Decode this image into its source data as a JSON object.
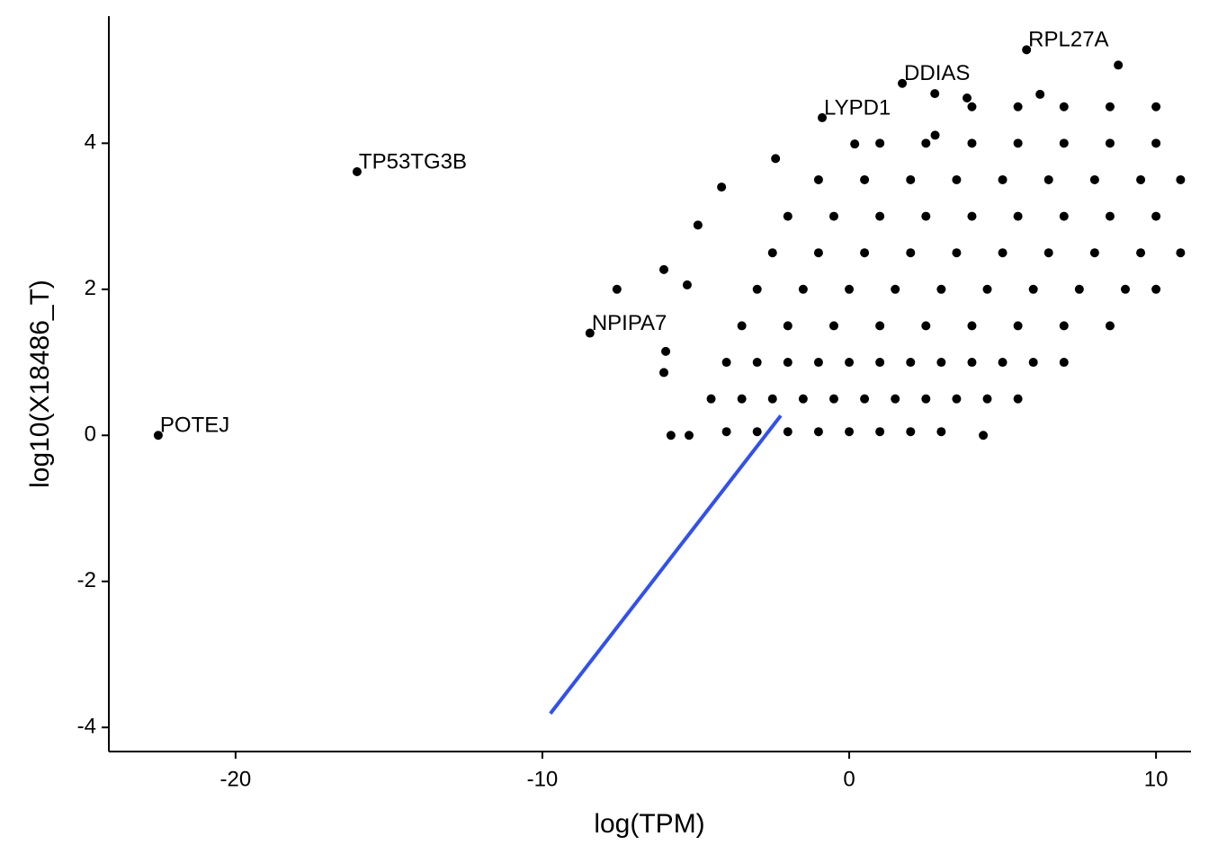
{
  "chart_data": {
    "type": "scatter",
    "x_label": "log(TPM)",
    "y_label": "log10(X18486_T)",
    "xlim": [
      -24.13,
      11.14
    ],
    "ylim": [
      -4.33,
      5.74
    ],
    "xticks": [
      -20,
      -10,
      0,
      10
    ],
    "yticks": [
      -4,
      -2,
      0,
      2,
      4
    ],
    "color": "#000000",
    "labeled_points": {
      "x": [
        -22.52,
        -16.04,
        -8.45,
        5.78,
        1.73,
        -0.88
      ],
      "y": [
        0,
        3.61,
        1.4,
        5.28,
        4.82,
        4.35
      ],
      "labels": [
        "POTEJ",
        "TP53TG3B",
        "NPIPA7",
        "RPL27A",
        "DDIAS",
        "LYPD1"
      ]
    },
    "points": {
      "x": [
        -7.57,
        -5.81,
        -5.22,
        4.37,
        -5.98,
        -6.04,
        -6.04,
        -5.28,
        -4.93,
        -4.16,
        -2.4,
        2.79,
        3.84,
        6.22,
        8.77,
        2.8,
        0.18,
        -4,
        -3,
        -2,
        -1,
        0,
        1,
        2,
        3,
        -4.5,
        -3.5,
        -2.5,
        -1.5,
        -0.5,
        0.5,
        1.5,
        2.5,
        3.5,
        4.5,
        5.5,
        -4,
        -3,
        -2,
        -1,
        0,
        1,
        2,
        3,
        4,
        5,
        6,
        7,
        -3.5,
        -2,
        -0.5,
        1,
        2.5,
        4,
        5.5,
        7,
        8.5,
        -3,
        -1.5,
        0,
        1.5,
        3,
        4.5,
        6,
        7.5,
        9,
        10,
        -2.5,
        -1,
        0.5,
        2,
        3.5,
        5,
        6.5,
        8,
        9.5,
        10.8,
        -2,
        -0.5,
        1,
        2.5,
        4,
        5.5,
        7,
        8.5,
        10,
        -1,
        0.5,
        2,
        3.5,
        5,
        6.5,
        8,
        9.5,
        10.8,
        1,
        2.5,
        4,
        5.5,
        7,
        8.5,
        10,
        4,
        5.5,
        7,
        8.5,
        10
      ],
      "y": [
        2.0,
        0,
        0,
        0,
        1.15,
        0.86,
        2.27,
        2.06,
        2.88,
        3.4,
        3.79,
        4.68,
        4.62,
        4.67,
        5.07,
        4.11,
        3.99,
        0.05,
        0.05,
        0.05,
        0.05,
        0.05,
        0.05,
        0.05,
        0.05,
        0.5,
        0.5,
        0.5,
        0.5,
        0.5,
        0.5,
        0.5,
        0.5,
        0.5,
        0.5,
        0.5,
        1.0,
        1.0,
        1.0,
        1.0,
        1.0,
        1.0,
        1.0,
        1.0,
        1.0,
        1.0,
        1.0,
        1.0,
        1.5,
        1.5,
        1.5,
        1.5,
        1.5,
        1.5,
        1.5,
        1.5,
        1.5,
        2.0,
        2.0,
        2.0,
        2.0,
        2.0,
        2.0,
        2.0,
        2.0,
        2.0,
        2.0,
        2.5,
        2.5,
        2.5,
        2.5,
        2.5,
        2.5,
        2.5,
        2.5,
        2.5,
        2.5,
        3.0,
        3.0,
        3.0,
        3.0,
        3.0,
        3.0,
        3.0,
        3.0,
        3.0,
        3.5,
        3.5,
        3.5,
        3.5,
        3.5,
        3.5,
        3.5,
        3.5,
        3.5,
        4.0,
        4.0,
        4.0,
        4.0,
        4.0,
        4.0,
        4.0,
        4.5,
        4.5,
        4.5,
        4.5,
        4.5
      ]
    },
    "fit_line": {
      "x": [
        -9.74,
        -2.23
      ],
      "y": [
        -3.81,
        0.27
      ],
      "color": "#3050f0"
    }
  }
}
